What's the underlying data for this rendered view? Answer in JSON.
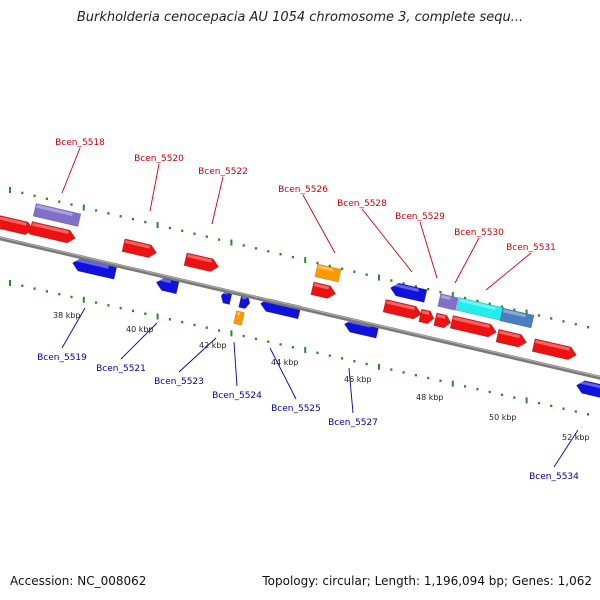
{
  "title": "Burkholderia cenocepacia AU 1054 chromosome 3, complete sequ...",
  "footer": {
    "accession": "Accession: NC_008062",
    "topology": "Topology: circular; Length: 1,196,094 bp; Genes: 1,062"
  },
  "colors": {
    "backbone": "#808080",
    "tick": "#2a8a2a",
    "forward_gene": "#ee1111",
    "reverse_gene": "#1111dd",
    "rna_gene": "#ff9900",
    "purple_gene": "#8070cc",
    "cyan_gene": "#22eeee",
    "steelblue_gene": "#4a7fbf",
    "label_top": "#cc0000",
    "label_bottom": "#0000aa"
  },
  "scale_labels": [
    "38 kbp",
    "40 kbp",
    "42 kbp",
    "44 kbp",
    "46 kbp",
    "48 kbp",
    "50 kbp",
    "52 kbp"
  ],
  "top_labels": [
    "Bcen_5518",
    "Bcen_5520",
    "Bcen_5522",
    "Bcen_5526",
    "Bcen_5528",
    "Bcen_5529",
    "Bcen_5530",
    "Bcen_5531"
  ],
  "bottom_labels": [
    "Bcen_5519",
    "Bcen_5521",
    "Bcen_5523",
    "Bcen_5524",
    "Bcen_5525",
    "Bcen_5527",
    "Bcen_5534"
  ]
}
